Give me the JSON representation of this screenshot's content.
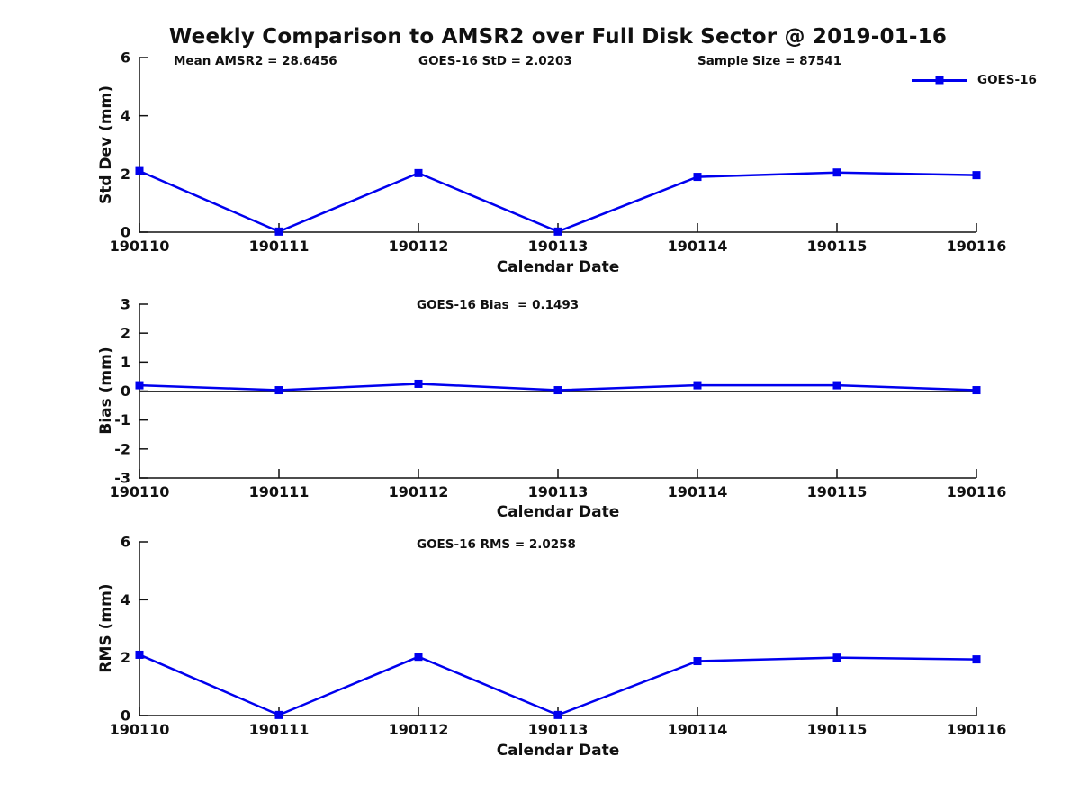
{
  "title": "Weekly Comparison to AMSR2 over Full Disk Sector @ 2019-01-16",
  "colors": {
    "series": "#0000ee",
    "axis": "#111111",
    "text": "#111111",
    "zero_line": "#333333"
  },
  "legend": {
    "label": "GOES-16",
    "position": "top-right"
  },
  "chart_data": [
    {
      "type": "line",
      "xlabel": "Calendar Date",
      "ylabel": "Std Dev (mm)",
      "categories": [
        "190110",
        "190111",
        "190112",
        "190113",
        "190114",
        "190115",
        "190116"
      ],
      "series": [
        {
          "name": "GOES-16",
          "values": [
            2.1,
            0.02,
            2.03,
            0.02,
            1.9,
            2.05,
            1.96
          ]
        }
      ],
      "ylim": [
        0,
        6
      ],
      "yticks": [
        0,
        2,
        4,
        6
      ],
      "grid": false,
      "zero_line": false,
      "annotations": {
        "mean_amsr2": "Mean AMSR2 = 28.6456",
        "goes16_std": "GOES-16 StD = 2.0203",
        "sample_size": "Sample Size = 87541"
      }
    },
    {
      "type": "line",
      "xlabel": "Calendar Date",
      "ylabel": "Bias (mm)",
      "categories": [
        "190110",
        "190111",
        "190112",
        "190113",
        "190114",
        "190115",
        "190116"
      ],
      "series": [
        {
          "name": "GOES-16",
          "values": [
            0.2,
            0.03,
            0.25,
            0.03,
            0.2,
            0.2,
            0.03
          ]
        }
      ],
      "ylim": [
        -3,
        3
      ],
      "yticks": [
        -3,
        -2,
        -1,
        0,
        1,
        2,
        3
      ],
      "grid": false,
      "zero_line": true,
      "annotation": "GOES-16 Bias  = 0.1493"
    },
    {
      "type": "line",
      "xlabel": "Calendar Date",
      "ylabel": "RMS (mm)",
      "categories": [
        "190110",
        "190111",
        "190112",
        "190113",
        "190114",
        "190115",
        "190116"
      ],
      "series": [
        {
          "name": "GOES-16",
          "values": [
            2.1,
            0.02,
            2.03,
            0.02,
            1.88,
            2.0,
            1.94
          ]
        }
      ],
      "ylim": [
        0,
        6
      ],
      "yticks": [
        0,
        2,
        4,
        6
      ],
      "grid": false,
      "zero_line": false,
      "annotation": "GOES-16 RMS = 2.0258"
    }
  ]
}
